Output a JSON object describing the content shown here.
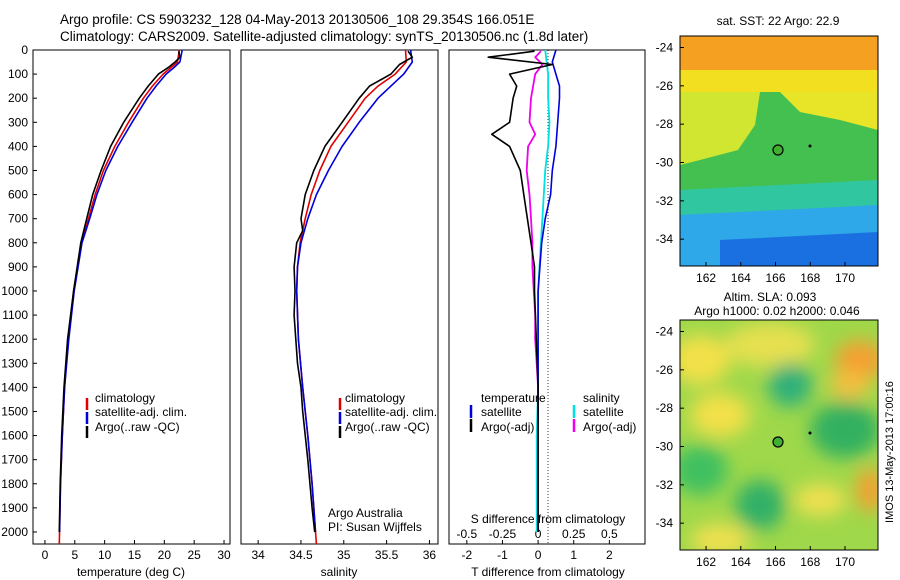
{
  "header": {
    "line1": "Argo profile: CS 5903232_128 04-May-2013 20130506_108 29.354S 166.051E",
    "line2": "Climatology: CARS2009. Satellite-adjusted climatology: synTS_20130506.nc (1.8d later)"
  },
  "panels": {
    "temperature": {
      "xlabel": "temperature (deg C)",
      "xticks": [
        0,
        5,
        10,
        15,
        20,
        25,
        30
      ],
      "xlim": [
        -2,
        31
      ],
      "legend": [
        "climatology",
        "satellite-adj. clim.",
        "Argo(..raw -QC)"
      ]
    },
    "salinity": {
      "xlabel": "salinity",
      "xticks": [
        "34",
        "34.5",
        "35",
        "35.5",
        "36"
      ],
      "xlim": [
        33.8,
        36.1
      ],
      "legend": [
        "climatology",
        "satellite-adj. clim.",
        "Argo(..raw -QC)"
      ],
      "note1": "Argo Australia",
      "note2": "PI: Susan Wijffels"
    },
    "difference": {
      "xlabel_bottom": "T difference from climatology",
      "xlabel_top": "S difference from climatology",
      "t_ticks": [
        "-2",
        "-1",
        "0",
        "1",
        "2"
      ],
      "s_ticks": [
        "-0.5",
        "-0.25",
        "0",
        "0.25",
        "0.5"
      ],
      "legend_temperature_title": "temperature",
      "legend_salinity_title": "salinity",
      "legend_labels": [
        "satellite",
        "Argo(-adj)",
        "satellite",
        "Argo(-adj)"
      ]
    }
  },
  "maps": {
    "sst": {
      "title": "sat. SST: 22 Argo: 22.9",
      "lat_ticks": [
        "-24",
        "-26",
        "-28",
        "-30",
        "-32",
        "-34"
      ],
      "lon_ticks": [
        "162",
        "164",
        "166",
        "168",
        "170"
      ]
    },
    "sla": {
      "title1": "Altim. SLA: 0.093",
      "title2": "Argo h1000: 0.02 h2000: 0.046",
      "lat_ticks": [
        "-24",
        "-26",
        "-28",
        "-30",
        "-32",
        "-34"
      ],
      "lon_ticks": [
        "162",
        "164",
        "166",
        "168",
        "170"
      ],
      "stamp": "IMOS 13-May-2013 17:00:16"
    }
  },
  "depth_ticks": [
    0,
    100,
    200,
    300,
    400,
    500,
    600,
    700,
    800,
    900,
    1000,
    1100,
    1200,
    1300,
    1400,
    1500,
    1600,
    1700,
    1800,
    1900,
    2000
  ],
  "colors": {
    "climatology": "#e00000",
    "satellite": "#0000dd",
    "argo": "#000000",
    "salinity_sat": "#00e0e0",
    "salinity_argo": "#ee00ee"
  },
  "chart_data": [
    {
      "type": "line",
      "xlabel": "temperature (deg C)",
      "ylabel": "",
      "xlim": [
        -2,
        31
      ],
      "ylim": [
        2050,
        0
      ],
      "series": [
        {
          "name": "climatology",
          "color": "#e00000",
          "depth": [
            0,
            50,
            75,
            100,
            150,
            200,
            300,
            400,
            500,
            600,
            700,
            800,
            1000,
            1200,
            1400,
            1600,
            1800,
            2050
          ],
          "values": [
            22.5,
            22.2,
            21.0,
            19.8,
            18.0,
            16.5,
            14.0,
            11.7,
            9.8,
            8.4,
            7.3,
            6.1,
            4.8,
            3.9,
            3.3,
            2.9,
            2.6,
            2.4
          ]
        },
        {
          "name": "satellite-adj. clim.",
          "color": "#0000dd",
          "depth": [
            0,
            50,
            75,
            100,
            150,
            200,
            300,
            400,
            500,
            600,
            700,
            800,
            1000,
            1200,
            1400,
            1600,
            1800,
            2000
          ],
          "values": [
            23.0,
            22.6,
            21.5,
            20.3,
            18.6,
            17.1,
            14.6,
            12.2,
            10.2,
            8.7,
            7.5,
            6.2,
            4.9,
            4.0,
            3.3,
            2.9,
            2.6,
            2.45
          ]
        },
        {
          "name": "Argo(..raw -QC)",
          "color": "#000000",
          "depth": [
            5,
            30,
            50,
            70,
            100,
            150,
            200,
            300,
            400,
            500,
            600,
            700,
            800,
            900,
            1000,
            1200,
            1400,
            1600,
            1800,
            2000
          ],
          "values": [
            22.4,
            22.6,
            21.8,
            20.8,
            19.0,
            17.3,
            15.8,
            13.2,
            11.0,
            9.4,
            8.0,
            7.0,
            6.0,
            5.4,
            4.8,
            3.8,
            3.2,
            2.8,
            2.55,
            2.4
          ]
        }
      ]
    },
    {
      "type": "line",
      "xlabel": "salinity",
      "ylabel": "",
      "xlim": [
        33.8,
        36.1
      ],
      "ylim": [
        2050,
        0
      ],
      "series": [
        {
          "name": "climatology",
          "color": "#e00000",
          "depth": [
            0,
            50,
            100,
            150,
            200,
            300,
            400,
            500,
            600,
            700,
            800,
            900,
            1000,
            1200,
            1400,
            1600,
            1800,
            2050
          ],
          "values": [
            35.72,
            35.73,
            35.6,
            35.4,
            35.25,
            35.05,
            34.85,
            34.72,
            34.62,
            34.55,
            34.49,
            34.46,
            34.45,
            34.47,
            34.52,
            34.58,
            34.63,
            34.68
          ]
        },
        {
          "name": "satellite-adj. clim.",
          "color": "#0000dd",
          "depth": [
            0,
            50,
            100,
            150,
            200,
            300,
            400,
            500,
            600,
            700,
            800,
            900,
            1000,
            1200,
            1400,
            1600,
            1800,
            2000
          ],
          "values": [
            35.78,
            35.8,
            35.7,
            35.55,
            35.4,
            35.18,
            34.98,
            34.82,
            34.68,
            34.58,
            34.5,
            34.46,
            34.45,
            34.47,
            34.52,
            34.58,
            34.63,
            34.67
          ]
        },
        {
          "name": "Argo(..raw -QC)",
          "color": "#000000",
          "depth": [
            5,
            30,
            60,
            100,
            150,
            200,
            300,
            400,
            500,
            600,
            700,
            750,
            800,
            900,
            1000,
            1100,
            1200,
            1300,
            1400,
            1500,
            1700,
            1900,
            2000
          ],
          "values": [
            35.75,
            35.8,
            35.65,
            35.55,
            35.3,
            35.18,
            34.98,
            34.78,
            34.65,
            34.55,
            34.5,
            34.52,
            34.45,
            34.42,
            34.43,
            34.42,
            34.44,
            34.46,
            34.5,
            34.52,
            34.58,
            34.63,
            34.66
          ]
        }
      ]
    },
    {
      "type": "line",
      "xlabel": "T difference from climatology",
      "ylabel": "",
      "xlim": [
        -2.5,
        3
      ],
      "ylim": [
        2050,
        0
      ],
      "series": [
        {
          "name": "satellite",
          "color": "#0000dd",
          "depth": [
            0,
            50,
            100,
            150,
            200,
            300,
            400,
            500,
            600,
            700,
            800,
            900,
            1000,
            1200,
            1400,
            1600,
            1800,
            2000
          ],
          "values": [
            0.5,
            0.4,
            0.5,
            0.6,
            0.6,
            0.55,
            0.5,
            0.4,
            0.35,
            0.2,
            0.1,
            0.05,
            0.0,
            0.0,
            0.0,
            0.0,
            0.0,
            0.0
          ]
        },
        {
          "name": "Argo(-adj)",
          "color": "#000000",
          "depth": [
            5,
            30,
            60,
            100,
            150,
            200,
            300,
            350,
            400,
            500,
            600,
            700,
            800,
            900,
            1000,
            1200,
            1400,
            1600,
            1800,
            2000
          ],
          "values": [
            -0.1,
            -1.4,
            0.4,
            -0.8,
            -0.6,
            -0.7,
            -0.8,
            -1.3,
            -0.8,
            -0.5,
            -0.4,
            -0.3,
            -0.2,
            -0.1,
            -0.1,
            -0.05,
            0.0,
            0.0,
            0.0,
            0.0
          ]
        }
      ]
    },
    {
      "type": "line",
      "xlabel": "S difference from climatology",
      "ylabel": "",
      "xlim": [
        -0.625,
        0.75
      ],
      "ylim": [
        2050,
        0
      ],
      "series": [
        {
          "name": "satellite",
          "color": "#00e0e0",
          "depth": [
            0,
            50,
            100,
            200,
            300,
            400,
            500,
            600,
            700,
            800,
            900,
            1000,
            1200,
            1400,
            1600,
            1800,
            2000
          ],
          "values": [
            0.05,
            0.06,
            0.07,
            0.07,
            0.08,
            0.07,
            0.05,
            0.04,
            0.03,
            0.02,
            0.01,
            0.0,
            0.0,
            0.0,
            -0.01,
            -0.01,
            -0.01
          ]
        },
        {
          "name": "Argo(-adj)",
          "color": "#ee00ee",
          "depth": [
            5,
            30,
            60,
            100,
            200,
            300,
            350,
            400,
            500,
            600,
            700,
            800,
            900,
            1000,
            1100,
            1200,
            1300,
            1400,
            1500
          ],
          "values": [
            0.02,
            -0.02,
            0.03,
            -0.02,
            -0.05,
            -0.06,
            -0.02,
            -0.07,
            -0.08,
            -0.06,
            -0.05,
            -0.04,
            -0.04,
            -0.03,
            -0.02,
            -0.02,
            -0.01,
            0.0,
            0.0
          ]
        }
      ]
    }
  ]
}
